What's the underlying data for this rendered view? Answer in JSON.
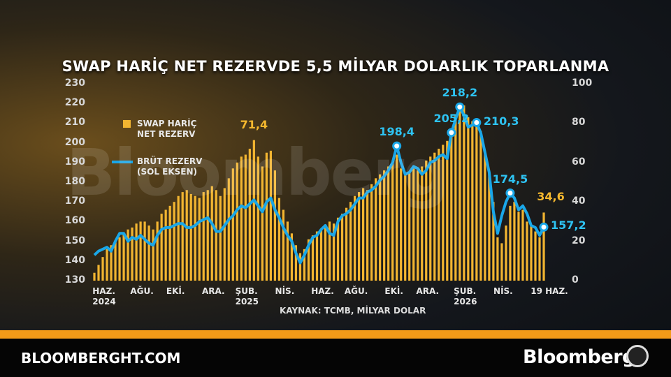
{
  "chart_data": {
    "type": "combo",
    "title": "SWAP HARİÇ NET REZERVDE 5,5 MİLYAR DOLARLIK TOPARLANMA",
    "source": "KAYNAK: TCMB, MİLYAR DOLAR",
    "watermark": "Bloomberg",
    "site": "BLOOMBERGHT.COM",
    "brand": "Bloomberg",
    "ylim": [
      130,
      230
    ],
    "yticks": [
      130,
      140,
      150,
      160,
      170,
      180,
      190,
      200,
      210,
      220,
      230
    ],
    "y2lim": [
      0,
      100
    ],
    "y2ticks": [
      0,
      20,
      40,
      60,
      80,
      100
    ],
    "categories": [
      null,
      "HAZ.\n2024",
      null,
      null,
      null,
      null,
      null,
      null,
      null,
      null,
      "AĞU.",
      null,
      null,
      null,
      null,
      null,
      null,
      null,
      "EKİ.",
      null,
      null,
      null,
      null,
      null,
      null,
      null,
      null,
      "ARA.",
      null,
      null,
      null,
      null,
      null,
      null,
      null,
      "ŞUB.\n2025",
      null,
      null,
      null,
      null,
      null,
      null,
      null,
      null,
      "NİS.",
      null,
      null,
      null,
      null,
      null,
      null,
      null,
      null,
      "HAZ.",
      null,
      null,
      null,
      null,
      null,
      null,
      null,
      "AĞU.",
      null,
      null,
      null,
      null,
      null,
      null,
      null,
      null,
      "EKİ.",
      null,
      null,
      null,
      null,
      null,
      null,
      null,
      "ARA.",
      null,
      null,
      null,
      null,
      null,
      null,
      null,
      null,
      "ŞUB.\n2026",
      null,
      null,
      null,
      null,
      null,
      null,
      null,
      null,
      "NİS.",
      null,
      null,
      null,
      null,
      null,
      null,
      null,
      null,
      null,
      null,
      "19 HAZ."
    ],
    "series": [
      {
        "name": "SWAP HARİÇ\nNET REZERV",
        "type": "bar",
        "axis": "y2",
        "color": "#f2b531",
        "values": [
          4,
          8,
          12,
          16,
          18,
          20,
          22,
          24,
          26,
          27,
          29,
          30,
          30,
          28,
          26,
          30,
          34,
          36,
          38,
          40,
          43,
          45,
          46,
          44,
          43,
          42,
          45,
          46,
          48,
          46,
          43,
          47,
          52,
          57,
          60,
          63,
          64,
          67,
          71.4,
          63,
          58,
          65,
          66,
          56,
          42,
          36,
          30,
          24,
          18,
          14,
          16,
          21,
          23,
          25,
          26,
          28,
          30,
          29,
          32,
          34,
          37,
          40,
          43,
          45,
          47,
          46,
          49,
          52,
          54,
          56,
          58,
          61,
          64,
          57,
          54,
          55,
          57,
          56,
          58,
          61,
          63,
          65,
          67,
          69,
          71,
          75,
          84,
          88,
          89,
          83,
          81,
          82,
          76,
          66,
          55,
          40,
          22,
          19,
          28,
          38,
          40,
          35,
          36,
          30,
          28,
          25,
          22,
          34.6
        ],
        "value_labels": [
          null,
          null,
          null,
          null,
          null,
          null,
          null,
          null,
          null,
          null,
          null,
          null,
          null,
          null,
          null,
          null,
          null,
          null,
          null,
          null,
          null,
          null,
          null,
          null,
          null,
          null,
          null,
          null,
          null,
          null,
          null,
          null,
          null,
          null,
          null,
          null,
          null,
          null,
          "71,4",
          null,
          null,
          null,
          null,
          null,
          null,
          null,
          null,
          null,
          null,
          null,
          null,
          null,
          null,
          null,
          null,
          null,
          null,
          null,
          null,
          null,
          null,
          null,
          null,
          null,
          null,
          null,
          null,
          null,
          null,
          null,
          null,
          null,
          null,
          null,
          null,
          null,
          null,
          null,
          null,
          null,
          null,
          null,
          null,
          null,
          null,
          null,
          null,
          null,
          null,
          null,
          null,
          null,
          null,
          null,
          null,
          null,
          null,
          null,
          null,
          null,
          null,
          null,
          null,
          null,
          null,
          null,
          null,
          "34,6"
        ]
      },
      {
        "name": "BRÜT REZERV\n(SOL EKSEN)",
        "type": "line",
        "axis": "y",
        "color": "#1aa7e8",
        "values": [
          143,
          145,
          146,
          147,
          145,
          150,
          154,
          154,
          150,
          152,
          151,
          153,
          151,
          149,
          148,
          153,
          156,
          157,
          157,
          158,
          159,
          159,
          157,
          157,
          158,
          160,
          161,
          162,
          159,
          155,
          155,
          158,
          161,
          163,
          166,
          168,
          167,
          169,
          171,
          168,
          165,
          170,
          172,
          166,
          162,
          157,
          153,
          150,
          144,
          139,
          143,
          148,
          152,
          153,
          156,
          158,
          154,
          153,
          160,
          163,
          164,
          166,
          169,
          172,
          172,
          175,
          176,
          178,
          181,
          183,
          186,
          190,
          198.4,
          190,
          184,
          185,
          188,
          187,
          184,
          186,
          190,
          191,
          193,
          194,
          192,
          205.2,
          212,
          218.2,
          214,
          208,
          209,
          210.3,
          205,
          195,
          185,
          165,
          154,
          163,
          170,
          174.5,
          172,
          166,
          168,
          164,
          158,
          157,
          153,
          157.2
        ],
        "value_labels": [
          null,
          null,
          null,
          null,
          null,
          null,
          null,
          null,
          null,
          null,
          null,
          null,
          null,
          null,
          null,
          null,
          null,
          null,
          null,
          null,
          null,
          null,
          null,
          null,
          null,
          null,
          null,
          null,
          null,
          null,
          null,
          null,
          null,
          null,
          null,
          null,
          null,
          null,
          null,
          null,
          null,
          null,
          null,
          null,
          null,
          null,
          null,
          null,
          null,
          null,
          null,
          null,
          null,
          null,
          null,
          null,
          null,
          null,
          null,
          null,
          null,
          null,
          null,
          null,
          null,
          null,
          null,
          null,
          null,
          null,
          null,
          null,
          "198,4",
          null,
          null,
          null,
          null,
          null,
          null,
          null,
          null,
          null,
          null,
          null,
          null,
          "205,2",
          null,
          "218,2",
          null,
          null,
          null,
          "210,3",
          null,
          null,
          null,
          null,
          null,
          null,
          null,
          "174,5",
          null,
          null,
          null,
          null,
          null,
          null,
          null,
          "157,2"
        ]
      }
    ]
  }
}
